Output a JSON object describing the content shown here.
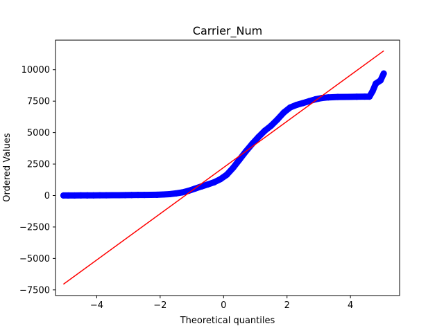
{
  "chart_data": {
    "type": "scatter",
    "title": "Carrier_Num",
    "xlabel": "Theoretical quantiles",
    "ylabel": "Ordered Values",
    "xlim": [
      -5.3,
      5.55
    ],
    "ylim": [
      -7950,
      12350
    ],
    "xticks": [
      -4,
      -2,
      0,
      2,
      4
    ],
    "xtick_labels": [
      "−4",
      "−2",
      "0",
      "2",
      "4"
    ],
    "yticks": [
      -7500,
      -5000,
      -2500,
      0,
      2500,
      5000,
      7500,
      10000
    ],
    "ytick_labels": [
      "−7500",
      "−5000",
      "−2500",
      "0",
      "2500",
      "5000",
      "7500",
      "10000"
    ],
    "grid": false,
    "series": [
      {
        "kind": "points",
        "color": "#0000ff",
        "points": [
          [
            -5.05,
            5
          ],
          [
            -4.9,
            6
          ],
          [
            -4.7,
            8
          ],
          [
            -4.5,
            10
          ],
          [
            -4.3,
            12
          ],
          [
            -4.1,
            14
          ],
          [
            -3.9,
            17
          ],
          [
            -3.7,
            20
          ],
          [
            -3.5,
            25
          ],
          [
            -3.3,
            30
          ],
          [
            -3.1,
            35
          ],
          [
            -2.9,
            40
          ],
          [
            -2.7,
            45
          ],
          [
            -2.5,
            50
          ],
          [
            -2.3,
            55
          ],
          [
            -2.1,
            60
          ],
          [
            -1.9,
            80
          ],
          [
            -1.7,
            110
          ],
          [
            -1.5,
            170
          ],
          [
            -1.3,
            250
          ],
          [
            -1.1,
            380
          ],
          [
            -0.9,
            550
          ],
          [
            -0.7,
            720
          ],
          [
            -0.5,
            880
          ],
          [
            -0.3,
            1050
          ],
          [
            -0.1,
            1300
          ],
          [
            0.1,
            1650
          ],
          [
            0.3,
            2200
          ],
          [
            0.5,
            2850
          ],
          [
            0.7,
            3500
          ],
          [
            0.9,
            4100
          ],
          [
            1.1,
            4650
          ],
          [
            1.3,
            5150
          ],
          [
            1.5,
            5550
          ],
          [
            1.7,
            6050
          ],
          [
            1.9,
            6600
          ],
          [
            2.1,
            7000
          ],
          [
            2.3,
            7200
          ],
          [
            2.5,
            7350
          ],
          [
            2.7,
            7500
          ],
          [
            2.9,
            7650
          ],
          [
            3.1,
            7750
          ],
          [
            3.3,
            7800
          ],
          [
            3.6,
            7830
          ],
          [
            3.9,
            7840
          ],
          [
            4.2,
            7850
          ],
          [
            4.45,
            7860
          ],
          [
            4.6,
            7860
          ],
          [
            4.7,
            8300
          ],
          [
            4.8,
            8900
          ],
          [
            4.95,
            9150
          ],
          [
            5.05,
            9700
          ]
        ]
      },
      {
        "kind": "line",
        "color": "#ff0000",
        "x": [
          -5.05,
          5.05
        ],
        "y": [
          -7050,
          11500
        ]
      }
    ]
  }
}
